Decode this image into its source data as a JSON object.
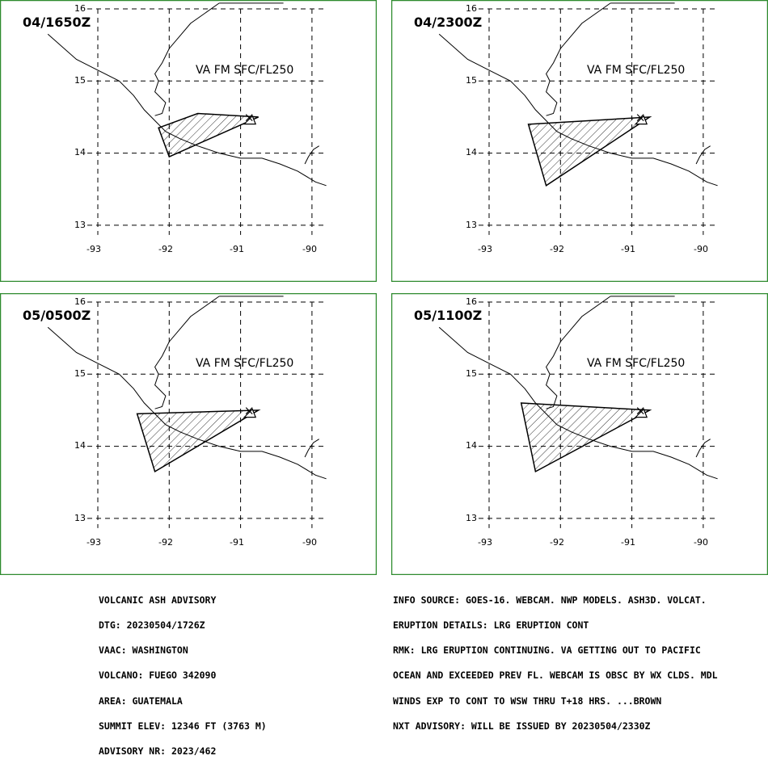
{
  "panels": [
    {
      "time": "04/1650Z",
      "level": "VA FM SFC/FL250",
      "polygon": [
        [
          -92.15,
          14.35
        ],
        [
          -91.6,
          14.55
        ],
        [
          -90.75,
          14.5
        ],
        [
          -92.0,
          13.95
        ]
      ]
    },
    {
      "time": "04/2300Z",
      "level": "VA FM SFC/FL250",
      "polygon": [
        [
          -92.45,
          14.4
        ],
        [
          -90.75,
          14.5
        ],
        [
          -92.2,
          13.55
        ]
      ]
    },
    {
      "time": "05/0500Z",
      "level": "VA FM SFC/FL250",
      "polygon": [
        [
          -92.45,
          14.45
        ],
        [
          -90.75,
          14.5
        ],
        [
          -92.2,
          13.65
        ]
      ]
    },
    {
      "time": "05/1100Z",
      "level": "VA FM SFC/FL250",
      "polygon": [
        [
          -92.55,
          14.6
        ],
        [
          -90.75,
          14.5
        ],
        [
          -92.35,
          13.65
        ]
      ]
    }
  ],
  "axes": {
    "lon_labels": [
      "-93",
      "-92",
      "-91",
      "-90"
    ],
    "lat_labels": [
      "16",
      "15",
      "14",
      "13"
    ]
  },
  "volcano": {
    "lon": -90.88,
    "lat": 14.47,
    "symbol": "volcano-triangle-icon"
  },
  "colors": {
    "frame": "#2e8b2e",
    "lines": "#000000",
    "background": "#ffffff"
  },
  "advisory_left": [
    "VOLCANIC ASH ADVISORY",
    "DTG: 20230504/1726Z",
    "VAAC: WASHINGTON",
    "VOLCANO: FUEGO 342090",
    "AREA: GUATEMALA",
    "SUMMIT ELEV: 12346 FT (3763 M)",
    "ADVISORY NR: 2023/462"
  ],
  "advisory_right": [
    "INFO SOURCE: GOES-16. WEBCAM. NWP MODELS. ASH3D. VOLCAT.",
    "ERUPTION DETAILS: LRG ERUPTION CONT",
    "RMK: LRG ERUPTION CONTINUING. VA GETTING OUT TO PACIFIC",
    "OCEAN AND EXCEEDED PREV FL. WEBCAM IS OBSC BY WX CLDS. MDL",
    "WINDS EXP TO CONT TO WSW THRU T+18 HRS. ...BROWN",
    "NXT ADVISORY: WILL BE ISSUED BY 20230504/2330Z"
  ]
}
